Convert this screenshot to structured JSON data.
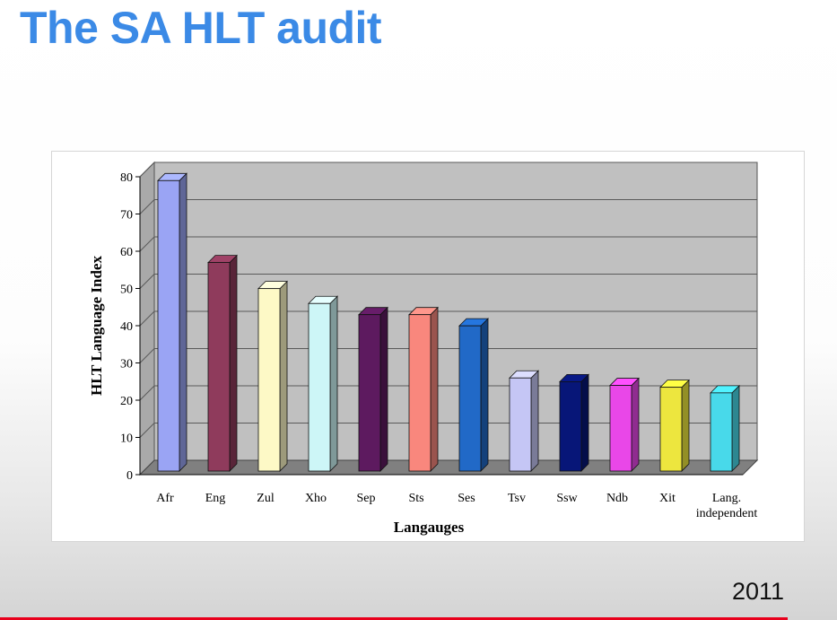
{
  "slide": {
    "title": "The SA HLT audit",
    "year": "2011"
  },
  "chart_data": {
    "type": "bar",
    "style": "3d-column",
    "categories": [
      "Afr",
      "Eng",
      "Zul",
      "Xho",
      "Sep",
      "Sts",
      "Ses",
      "Tsv",
      "Ssw",
      "Ndb",
      "Xit",
      "Lang.\nindependent"
    ],
    "values": [
      78,
      56,
      49,
      45,
      42,
      42,
      39,
      25,
      24,
      23,
      22.5,
      21
    ],
    "colors": [
      "#9aa4f4",
      "#8f3b5c",
      "#fdf9c6",
      "#cdf6f7",
      "#5d1a5f",
      "#f9877d",
      "#2169c7",
      "#c5c6f5",
      "#071678",
      "#e947e8",
      "#ede63e",
      "#48d9ea"
    ],
    "xlabel": "Langauges",
    "ylabel": "HLT Language Index",
    "ylim": [
      0,
      80
    ],
    "yticks": [
      0,
      10,
      20,
      30,
      40,
      50,
      60,
      70,
      80
    ],
    "grid": true,
    "legend": "none",
    "plot_background": "#c0c0c0"
  }
}
